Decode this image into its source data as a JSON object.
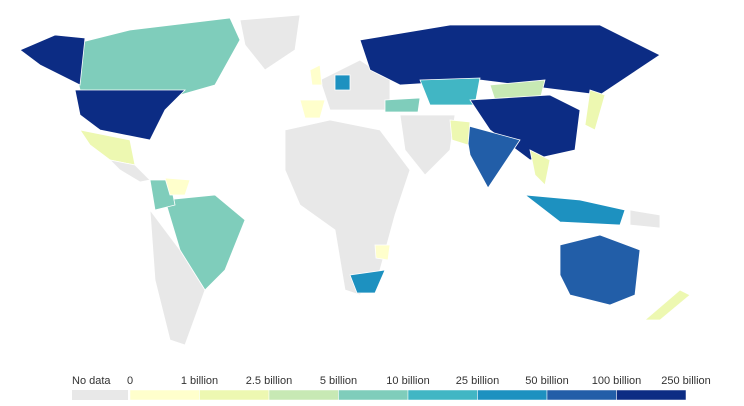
{
  "legend": {
    "no_data": {
      "label": "No data",
      "color": "#e8e8e8"
    },
    "ticks": [
      "0",
      "1 billion",
      "2.5 billion",
      "5 billion",
      "10 billion",
      "25 billion",
      "50 billion",
      "100 billion",
      "250 billion"
    ],
    "bins": [
      {
        "color": "#ffffcc"
      },
      {
        "color": "#edf8b1"
      },
      {
        "color": "#c7e9b4"
      },
      {
        "color": "#7fcdbb"
      },
      {
        "color": "#41b6c4"
      },
      {
        "color": "#1d91c0"
      },
      {
        "color": "#225ea8"
      },
      {
        "color": "#0c2c84"
      }
    ]
  }
}
